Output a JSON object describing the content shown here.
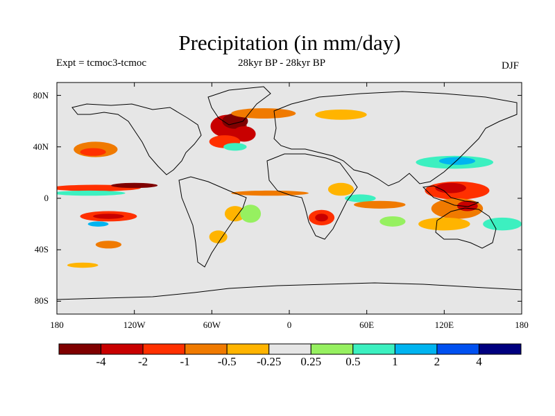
{
  "chart_data": {
    "type": "heatmap",
    "title": "Precipitation (in mm/day)",
    "subtitle_left": "Expt = tcmoc3-tcmoc",
    "subtitle_center": "28kyr BP - 28kyr BP",
    "subtitle_right": "DJF",
    "xlim": [
      -180,
      180
    ],
    "ylim": [
      -90,
      90
    ],
    "x_ticks": [
      {
        "value": -180,
        "label": "180"
      },
      {
        "value": -120,
        "label": "120W"
      },
      {
        "value": -60,
        "label": "60W"
      },
      {
        "value": 0,
        "label": "0"
      },
      {
        "value": 60,
        "label": "60E"
      },
      {
        "value": 120,
        "label": "120E"
      },
      {
        "value": 180,
        "label": "180"
      }
    ],
    "y_ticks": [
      {
        "value": 80,
        "label": "80N"
      },
      {
        "value": 40,
        "label": "40N"
      },
      {
        "value": 0,
        "label": "0"
      },
      {
        "value": -40,
        "label": "40S"
      },
      {
        "value": -80,
        "label": "80S"
      }
    ],
    "colorbar": {
      "colors": [
        "#7f0000",
        "#c80000",
        "#ff3000",
        "#f07a00",
        "#ffb400",
        "#e6e6e6",
        "#96f060",
        "#3cf0c0",
        "#00b4f0",
        "#0050f0",
        "#00007f"
      ],
      "labels": [
        "-4",
        "-2",
        "-1",
        "-0.5",
        "-0.25",
        "0.25",
        "0.5",
        "1",
        "2",
        "4"
      ]
    },
    "anomaly_regions": [
      {
        "lon": -47,
        "lat": 56,
        "rx": 14,
        "ry": 9,
        "level": 1
      },
      {
        "lon": -42,
        "lat": 60,
        "rx": 10,
        "ry": 6,
        "level": 0
      },
      {
        "lon": -35,
        "lat": 50,
        "rx": 9,
        "ry": 6,
        "level": 1
      },
      {
        "lon": -50,
        "lat": 44,
        "rx": 12,
        "ry": 5,
        "level": 2
      },
      {
        "lon": -20,
        "lat": 66,
        "rx": 25,
        "ry": 4,
        "level": 3
      },
      {
        "lon": -42,
        "lat": 40,
        "rx": 9,
        "ry": 3,
        "level": 7
      },
      {
        "lon": -150,
        "lat": 38,
        "rx": 17,
        "ry": 6,
        "level": 3
      },
      {
        "lon": -152,
        "lat": 36,
        "rx": 10,
        "ry": 3,
        "level": 2
      },
      {
        "lon": -150,
        "lat": 8,
        "rx": 35,
        "ry": 2.5,
        "level": 2
      },
      {
        "lon": -120,
        "lat": 10,
        "rx": 18,
        "ry": 2,
        "level": 0
      },
      {
        "lon": -155,
        "lat": 4,
        "rx": 28,
        "ry": 2,
        "level": 7
      },
      {
        "lon": -140,
        "lat": -14,
        "rx": 22,
        "ry": 4,
        "level": 2
      },
      {
        "lon": -140,
        "lat": -14,
        "rx": 12,
        "ry": 2,
        "level": 1
      },
      {
        "lon": -148,
        "lat": -20,
        "rx": 8,
        "ry": 2,
        "level": 8
      },
      {
        "lon": -140,
        "lat": -36,
        "rx": 10,
        "ry": 3,
        "level": 3
      },
      {
        "lon": -160,
        "lat": -52,
        "rx": 12,
        "ry": 2,
        "level": 4
      },
      {
        "lon": -42,
        "lat": -12,
        "rx": 8,
        "ry": 6,
        "level": 4
      },
      {
        "lon": -15,
        "lat": 4,
        "rx": 30,
        "ry": 2,
        "level": 3
      },
      {
        "lon": -30,
        "lat": -12,
        "rx": 8,
        "ry": 7,
        "level": 6
      },
      {
        "lon": -55,
        "lat": -30,
        "rx": 7,
        "ry": 5,
        "level": 4
      },
      {
        "lon": 25,
        "lat": -15,
        "rx": 10,
        "ry": 6,
        "level": 2
      },
      {
        "lon": 25,
        "lat": -15,
        "rx": 5,
        "ry": 3,
        "level": 1
      },
      {
        "lon": 40,
        "lat": 7,
        "rx": 10,
        "ry": 5,
        "level": 4
      },
      {
        "lon": 55,
        "lat": 0,
        "rx": 12,
        "ry": 3,
        "level": 7
      },
      {
        "lon": 70,
        "lat": -5,
        "rx": 20,
        "ry": 3,
        "level": 3
      },
      {
        "lon": 80,
        "lat": -18,
        "rx": 10,
        "ry": 4,
        "level": 6
      },
      {
        "lon": 130,
        "lat": 6,
        "rx": 25,
        "ry": 7,
        "level": 2
      },
      {
        "lon": 125,
        "lat": 8,
        "rx": 12,
        "ry": 4,
        "level": 1
      },
      {
        "lon": 130,
        "lat": -8,
        "rx": 20,
        "ry": 8,
        "level": 3
      },
      {
        "lon": 138,
        "lat": -6,
        "rx": 8,
        "ry": 4,
        "level": 1
      },
      {
        "lon": 128,
        "lat": 28,
        "rx": 30,
        "ry": 5,
        "level": 7
      },
      {
        "lon": 130,
        "lat": 29,
        "rx": 14,
        "ry": 3,
        "level": 8
      },
      {
        "lon": 120,
        "lat": -20,
        "rx": 20,
        "ry": 5,
        "level": 4
      },
      {
        "lon": 165,
        "lat": -20,
        "rx": 15,
        "ry": 5,
        "level": 7
      },
      {
        "lon": 40,
        "lat": 65,
        "rx": 20,
        "ry": 4,
        "level": 4
      }
    ]
  }
}
